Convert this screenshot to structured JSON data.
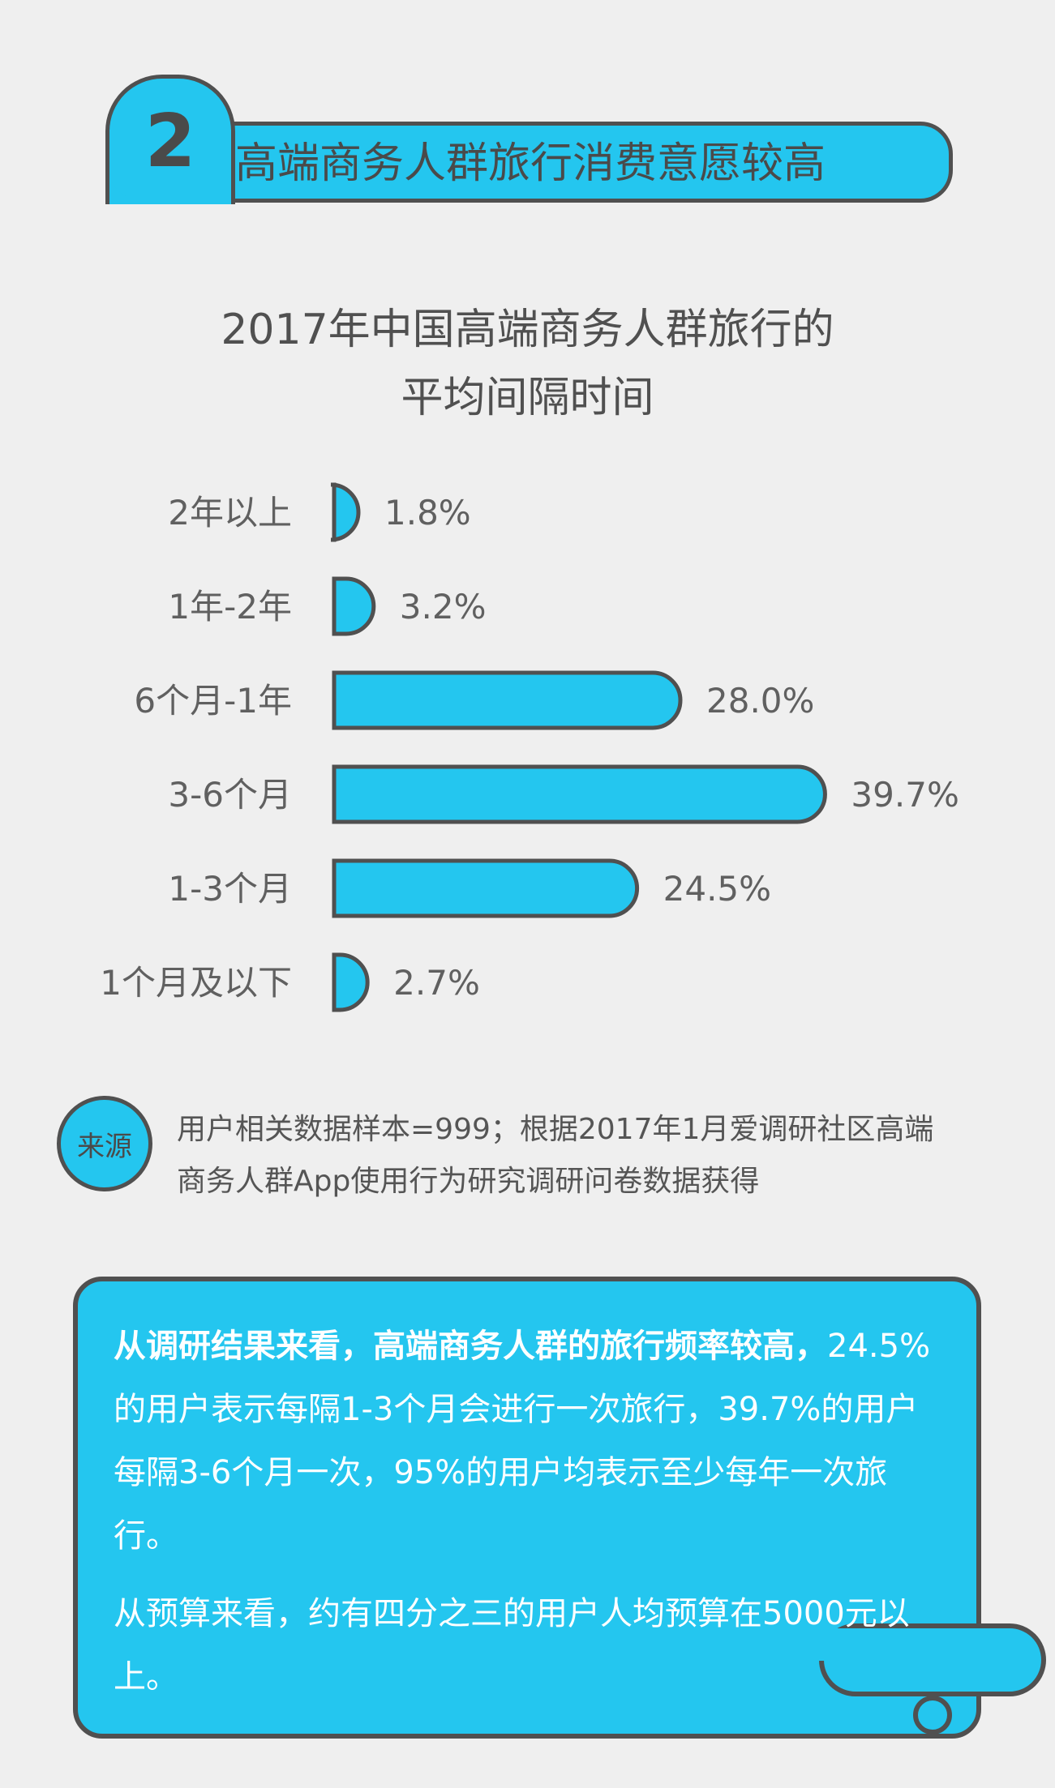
{
  "header": {
    "number": "2",
    "title": "高端商务人群旅行消费意愿较高"
  },
  "colors": {
    "accent": "#24c6ef",
    "outline": "#505050",
    "text": "#505050"
  },
  "chart_data": {
    "type": "bar",
    "orientation": "horizontal",
    "title": "2017年中国高端商务人群旅行的\n平均间隔时间",
    "categories": [
      "2年以上",
      "1年-2年",
      "6个月-1年",
      "3-6个月",
      "1-3个月",
      "1个月及以下"
    ],
    "values": [
      1.8,
      3.2,
      28.0,
      39.7,
      24.5,
      2.7
    ],
    "value_labels": [
      "1.8%",
      "3.2%",
      "28.0%",
      "39.7%",
      "24.5%",
      "2.7%"
    ],
    "unit": "%",
    "xlim": [
      0,
      40
    ],
    "grid": false,
    "legend": "none"
  },
  "source": {
    "badge": "来源",
    "text": "用户相关数据样本=999；根据2017年1月爱调研社区高端\n商务人群App使用行为研究调研问卷数据获得"
  },
  "summary": {
    "line1": "从调研结果来看，高端商务人群的旅行频率较高，",
    "line2": "24.5%的用户表示每隔1-3个月会进行一次旅行，39.7%的用户每隔3-6个月一次，95%的用户均表示至少每年一次旅行。",
    "line3": "从预算来看，约有四分之三的用户人均预算在5000元以上。"
  }
}
